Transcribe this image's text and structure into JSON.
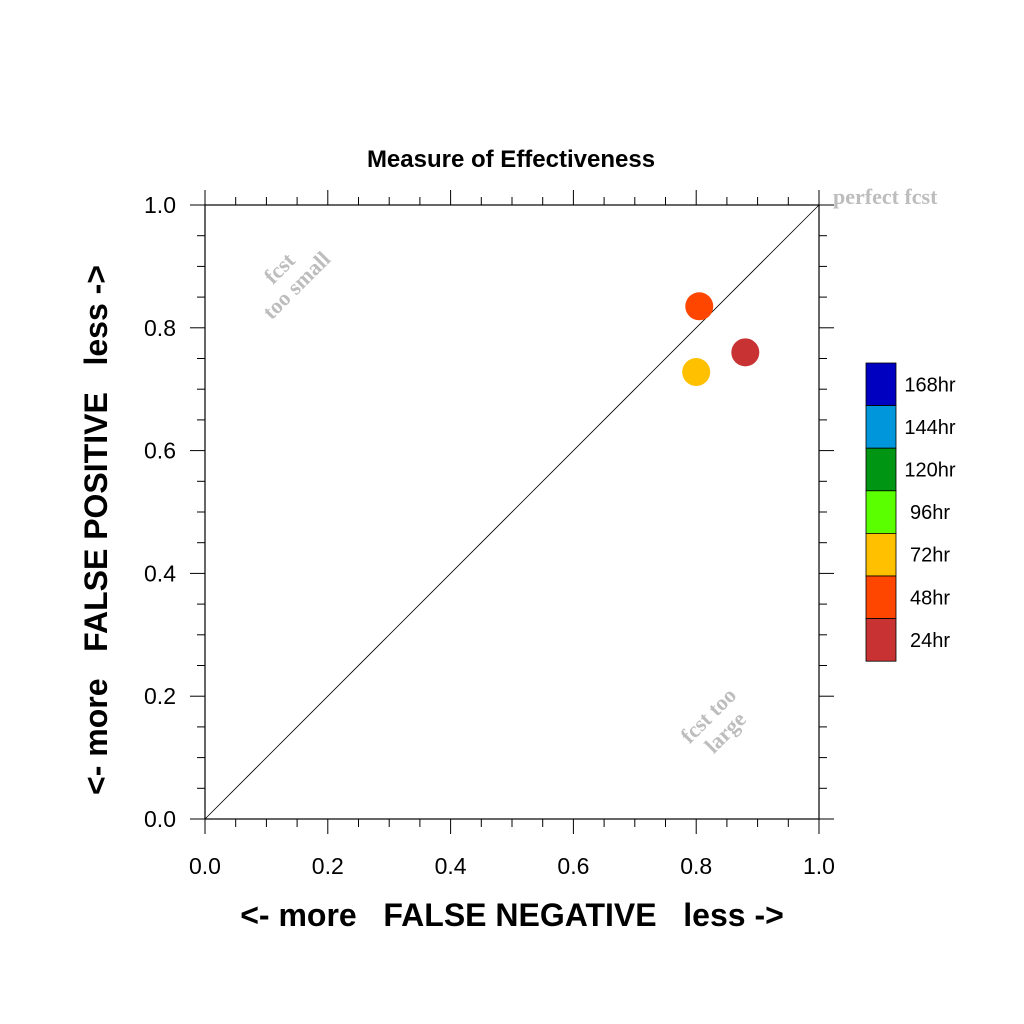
{
  "chart_data": {
    "type": "scatter",
    "title": "Measure of Effectiveness",
    "xlabel": "<- more   FALSE NEGATIVE   less ->",
    "ylabel": "<- more   FALSE POSITIVE   less ->",
    "xlim": [
      0,
      1
    ],
    "ylim": [
      0,
      1
    ],
    "x_ticks": [
      "0.0",
      "0.2",
      "0.4",
      "0.6",
      "0.8",
      "1.0"
    ],
    "y_ticks": [
      "0.0",
      "0.2",
      "0.4",
      "0.6",
      "0.8",
      "1.0"
    ],
    "diagonal_line": true,
    "grid": false,
    "annotations": {
      "top_left": [
        "fcst",
        "too small"
      ],
      "bottom_right": [
        "fcst too",
        "large"
      ],
      "top_right": "perfect fcst"
    },
    "legend": {
      "placement": "right",
      "entries": [
        {
          "label": "168hr",
          "color": "#0000c0"
        },
        {
          "label": "144hr",
          "color": "#0096dc"
        },
        {
          "label": "120hr",
          "color": "#009614"
        },
        {
          "label": "96hr",
          "color": "#5aff00"
        },
        {
          "label": "72hr",
          "color": "#ffc000"
        },
        {
          "label": "48hr",
          "color": "#ff4600"
        },
        {
          "label": "24hr",
          "color": "#c83232"
        }
      ]
    },
    "points": [
      {
        "series": "24hr",
        "x": 0.88,
        "y": 0.76,
        "color": "#c83232"
      },
      {
        "series": "48hr",
        "x": 0.805,
        "y": 0.835,
        "color": "#ff4600"
      },
      {
        "series": "72hr",
        "x": 0.8,
        "y": 0.728,
        "color": "#ffc000"
      }
    ]
  }
}
